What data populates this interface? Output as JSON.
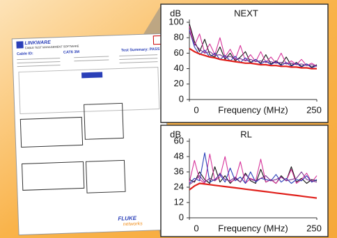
{
  "report": {
    "brand": "LINKWARE",
    "tagline": "CABLE TEST MANAGEMENT SOFTWARE",
    "cable_id": "Cable ID:",
    "cable_type": "CAT6 3M",
    "summary": "Test Summary: PASS",
    "vendor": "FLUKE",
    "vendor_sub": "networks"
  },
  "chart_data": [
    {
      "type": "line",
      "title": "NEXT",
      "y_label": "dB",
      "x_label": "Frequency (MHz)",
      "xlim": [
        0,
        250
      ],
      "xticks": [
        0,
        250
      ],
      "ylim": [
        0,
        100
      ],
      "yticks": [
        0,
        20,
        40,
        60,
        80,
        100
      ],
      "x": [
        0,
        10,
        20,
        30,
        40,
        50,
        60,
        70,
        80,
        90,
        100,
        110,
        120,
        130,
        140,
        150,
        160,
        170,
        180,
        190,
        200,
        210,
        220,
        230,
        240,
        250
      ],
      "series": [
        {
          "color": "#111111",
          "values": [
            98,
            75,
            62,
            78,
            58,
            55,
            68,
            52,
            60,
            50,
            55,
            62,
            48,
            52,
            47,
            58,
            46,
            50,
            45,
            55,
            44,
            48,
            43,
            46,
            42,
            45
          ]
        },
        {
          "color": "#d6339a",
          "values": [
            95,
            70,
            85,
            60,
            72,
            58,
            80,
            55,
            65,
            52,
            70,
            50,
            58,
            49,
            62,
            48,
            55,
            47,
            60,
            46,
            50,
            45,
            52,
            44,
            47,
            43
          ]
        },
        {
          "color": "#2a3fb8",
          "values": [
            90,
            68,
            58,
            64,
            55,
            60,
            52,
            57,
            50,
            56,
            48,
            54,
            47,
            52,
            46,
            50,
            45,
            49,
            44,
            48,
            43,
            47,
            42,
            46,
            41,
            44
          ]
        },
        {
          "color": "#7a2f8f",
          "values": [
            88,
            72,
            65,
            60,
            62,
            57,
            58,
            54,
            56,
            52,
            53,
            50,
            52,
            49,
            50,
            48,
            49,
            47,
            48,
            46,
            47,
            45,
            46,
            44,
            45,
            43
          ]
        },
        {
          "color": "#e0201b",
          "values": [
            66,
            62,
            59,
            57,
            55,
            54,
            52,
            51,
            50,
            49,
            48,
            47,
            47,
            46,
            45,
            45,
            44,
            44,
            43,
            43,
            42,
            42,
            41,
            41,
            40,
            40
          ]
        }
      ]
    },
    {
      "type": "line",
      "title": "RL",
      "y_label": "dB",
      "x_label": "Frequency (MHz)",
      "xlim": [
        0,
        250
      ],
      "xticks": [
        0,
        250
      ],
      "ylim": [
        0,
        60
      ],
      "yticks": [
        0,
        12,
        24,
        36,
        48,
        60
      ],
      "x": [
        0,
        10,
        20,
        30,
        40,
        50,
        60,
        70,
        80,
        90,
        100,
        110,
        120,
        130,
        140,
        150,
        160,
        170,
        180,
        190,
        200,
        210,
        220,
        230,
        240,
        250
      ],
      "series": [
        {
          "color": "#111111",
          "values": [
            30,
            28,
            36,
            30,
            27,
            40,
            28,
            33,
            27,
            31,
            28,
            35,
            29,
            27,
            38,
            28,
            30,
            27,
            33,
            29,
            40,
            28,
            31,
            27,
            30,
            29
          ]
        },
        {
          "color": "#d6339a",
          "values": [
            28,
            45,
            30,
            27,
            50,
            29,
            32,
            48,
            28,
            30,
            44,
            27,
            31,
            29,
            46,
            28,
            30,
            27,
            32,
            29,
            38,
            27,
            30,
            35,
            28,
            33
          ]
        },
        {
          "color": "#2a3fb8",
          "values": [
            27,
            31,
            29,
            51,
            28,
            30,
            34,
            28,
            39,
            29,
            32,
            27,
            36,
            28,
            31,
            30,
            29,
            34,
            28,
            31,
            27,
            30,
            29,
            33,
            28,
            30
          ]
        },
        {
          "color": "#7a2f8f",
          "values": [
            26,
            29,
            33,
            28,
            31,
            29,
            35,
            30,
            29,
            32,
            28,
            34,
            30,
            29,
            31,
            33,
            29,
            30,
            32,
            29,
            30,
            31,
            36,
            30,
            29,
            28
          ]
        },
        {
          "color": "#e0201b",
          "values": [
            22,
            25,
            27,
            26.5,
            26,
            25.5,
            25,
            24.5,
            24,
            23.5,
            23,
            22.5,
            22,
            21.5,
            21,
            20.5,
            20,
            19.5,
            19,
            18.5,
            18,
            17.5,
            17,
            16.5,
            16,
            15.5
          ]
        }
      ]
    }
  ]
}
